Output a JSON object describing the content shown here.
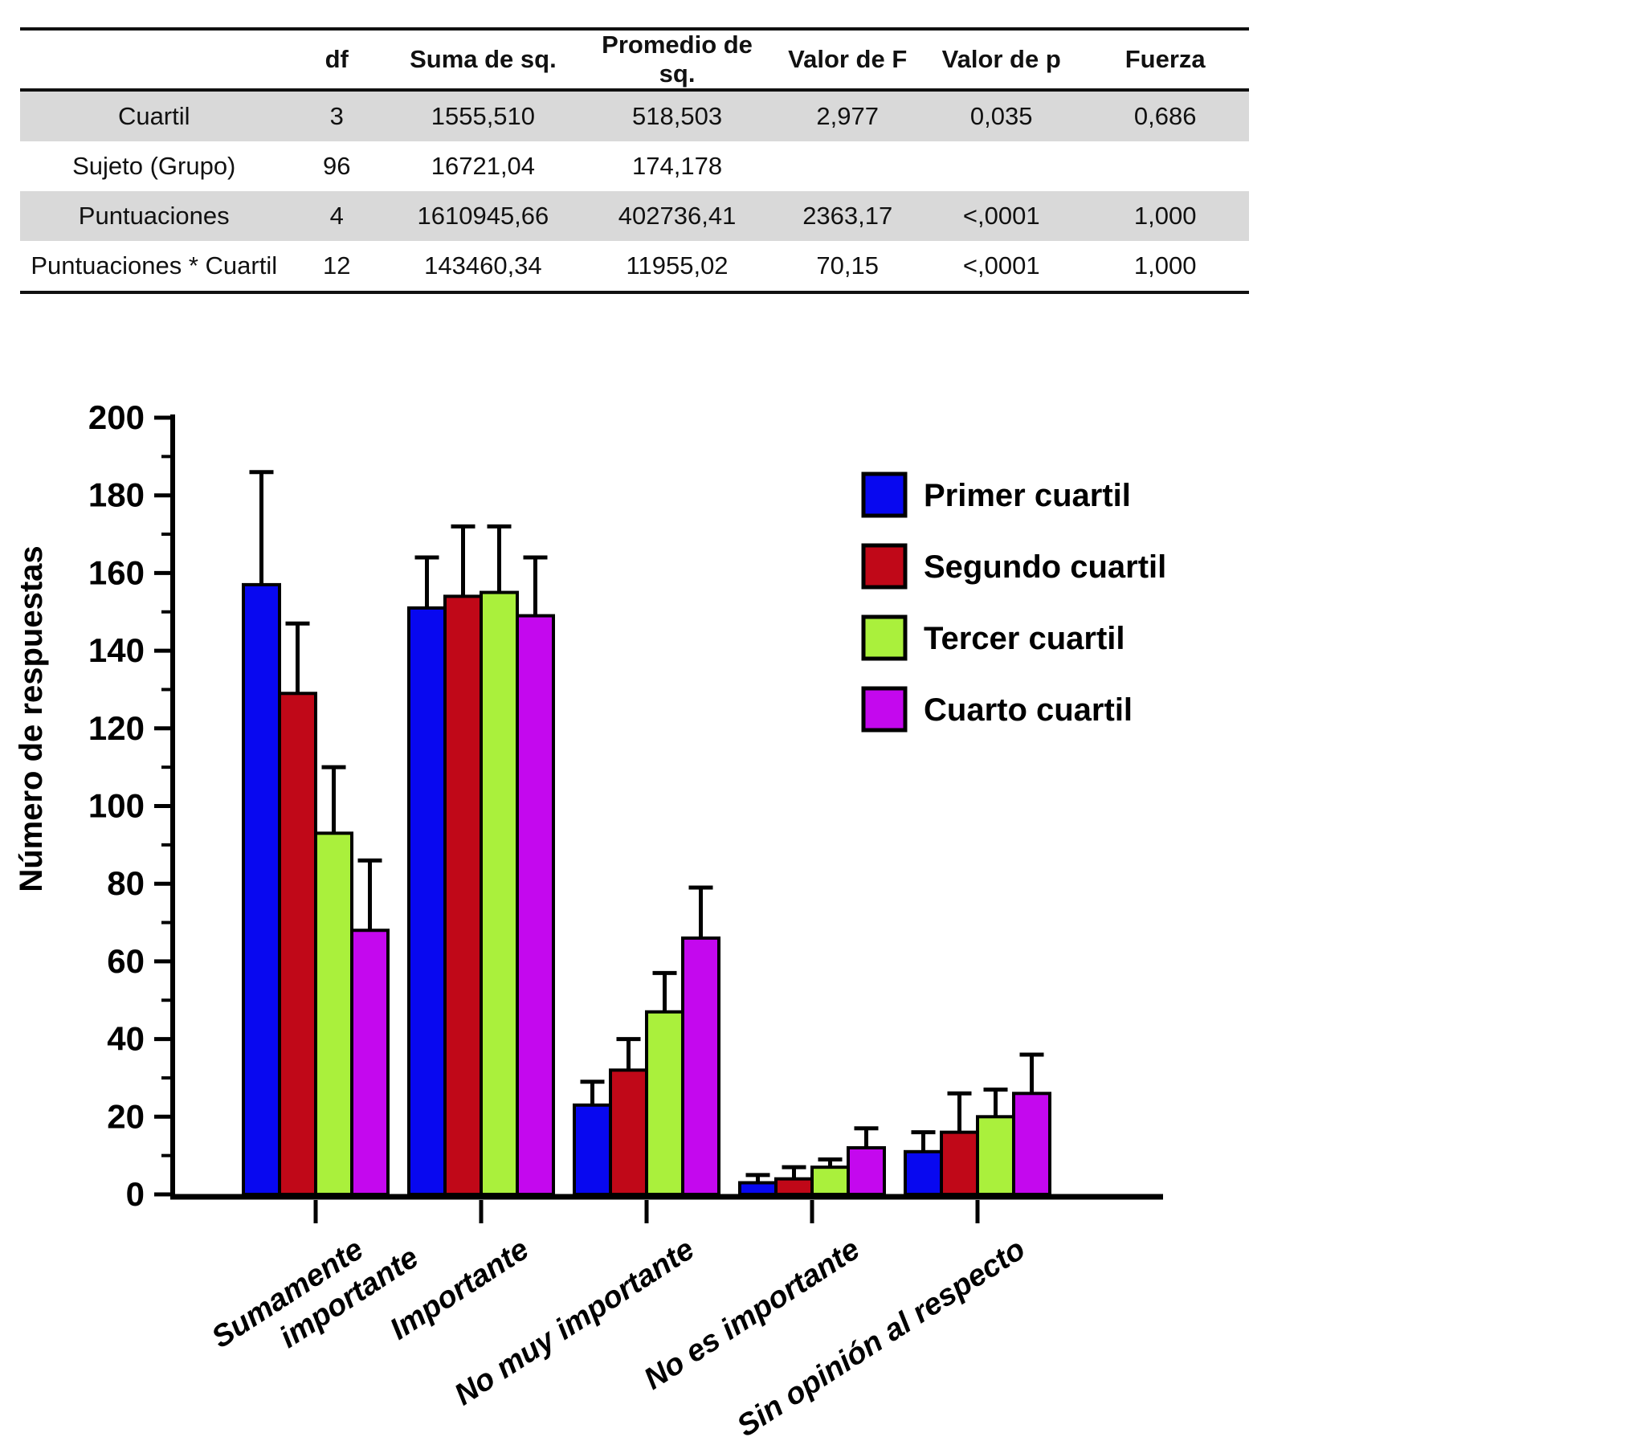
{
  "table": {
    "columns": [
      "",
      "df",
      "Suma de sq.",
      "Promedio de sq.",
      "Valor de F",
      "Valor de p",
      "Fuerza"
    ],
    "rows": [
      {
        "label": "Cuartil",
        "shaded": true,
        "values": [
          "3",
          "1555,510",
          "518,503",
          "2,977",
          "0,035",
          "0,686"
        ]
      },
      {
        "label": "Sujeto (Grupo)",
        "shaded": false,
        "values": [
          "96",
          "16721,04",
          "174,178",
          "",
          "",
          ""
        ]
      },
      {
        "label": "Puntuaciones",
        "shaded": true,
        "values": [
          "4",
          "1610945,66",
          "402736,41",
          "2363,17",
          "<,0001",
          "1,000"
        ]
      },
      {
        "label": "Puntuaciones * Cuartil",
        "shaded": false,
        "values": [
          "12",
          "143460,34",
          "11955,02",
          "70,15",
          "<,0001",
          "1,000"
        ]
      }
    ]
  },
  "chart_data": {
    "type": "bar",
    "title": "",
    "xlabel": "",
    "ylabel": "Número de respuestas",
    "ylim": [
      0,
      200
    ],
    "ytick_major": 20,
    "ytick_minor": 10,
    "grid": false,
    "legend_position": "upper-right-inside",
    "categories": [
      "Sumamente importante",
      "Importante",
      "No muy importante",
      "No es importante",
      "Sin opinión al respecto"
    ],
    "category_line_breaks": [
      [
        "Sumamente",
        "importante"
      ],
      [
        "Importante"
      ],
      [
        "No muy importante"
      ],
      [
        "No es importante"
      ],
      [
        "Sin opinión al respecto"
      ]
    ],
    "series": [
      {
        "name": "Primer cuartil",
        "color": "#0808F0",
        "values": [
          157,
          151,
          23,
          3,
          11
        ],
        "errors": [
          29,
          13,
          6,
          2,
          5
        ]
      },
      {
        "name": "Segundo cuartil",
        "color": "#C00818",
        "values": [
          129,
          154,
          32,
          4,
          16
        ],
        "errors": [
          18,
          18,
          8,
          3,
          10
        ]
      },
      {
        "name": "Tercer cuartil",
        "color": "#AAF03C",
        "values": [
          93,
          155,
          47,
          7,
          20
        ],
        "errors": [
          17,
          17,
          10,
          2,
          7
        ]
      },
      {
        "name": "Cuarto cuartil",
        "color": "#C408EE",
        "values": [
          68,
          149,
          66,
          12,
          26
        ],
        "errors": [
          18,
          15,
          13,
          5,
          10
        ]
      }
    ],
    "axis_color": "#000000",
    "error_bar_color": "#000000",
    "row_shade_color": "#d9d9d9"
  }
}
